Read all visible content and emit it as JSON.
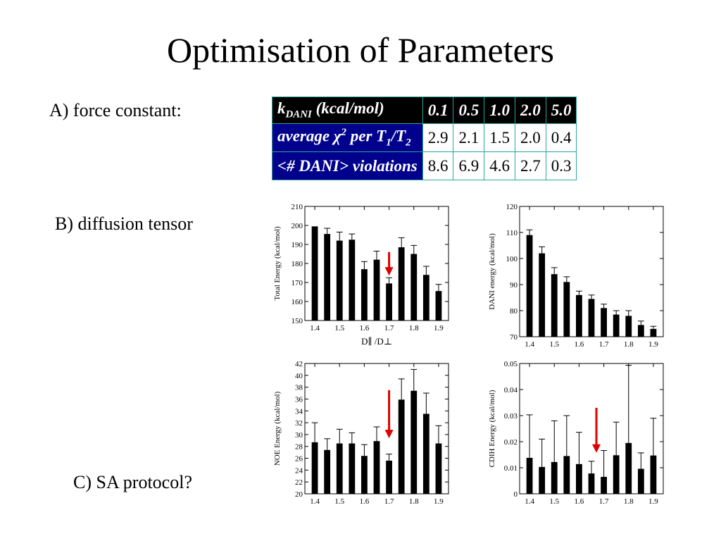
{
  "slide": {
    "title": "Optimisation of Parameters",
    "label_a": "A) force constant:",
    "label_b": "B) diffusion tensor",
    "label_c": "C) SA protocol?"
  },
  "table": {
    "header_label_main": "k",
    "header_label_sub": "DANI",
    "header_label_rest": " (kcal/mol)",
    "columns": [
      "0.1",
      "0.5",
      "1.0",
      "2.0",
      "5.0"
    ],
    "row1_label": {
      "a": "average ",
      "chi": "χ",
      "sup": "2",
      "b": " per T",
      "sub1": "1",
      "slash": "/T",
      "sub2": "2"
    },
    "row1_values": [
      "2.9",
      "2.1",
      "1.5",
      "2.0",
      "0.4"
    ],
    "row2_label": "<# DANI> violations",
    "row2_values": [
      "8.6",
      "6.9",
      "4.6",
      "2.7",
      "0.3"
    ],
    "colors": {
      "header_bg": "#000000",
      "rowhead_bg": "#00008c",
      "border": "#2aa79a"
    }
  },
  "chart_data": [
    {
      "id": "total",
      "type": "bar",
      "ylabel": "Total Energy (kcal/mol)",
      "xlabel": "D∥ /D⊥",
      "ylim": [
        150,
        210
      ],
      "yticks": [
        150,
        160,
        170,
        180,
        190,
        200,
        210
      ],
      "xlim": [
        1.36,
        1.94
      ],
      "xticks": [
        1.4,
        1.5,
        1.6,
        1.7,
        1.8,
        1.9
      ],
      "x": [
        1.4,
        1.45,
        1.5,
        1.55,
        1.6,
        1.65,
        1.7,
        1.75,
        1.8,
        1.85,
        1.9
      ],
      "values": [
        199.5,
        195.5,
        192.0,
        192.5,
        177.0,
        182.0,
        169.5,
        188.5,
        185.0,
        174.0,
        165.5
      ],
      "errors": [
        0,
        3,
        4.5,
        3,
        4,
        4.5,
        3,
        5,
        4.5,
        4.5,
        3.5
      ],
      "arrow_x": 1.7,
      "arrow_y": [
        186,
        174
      ],
      "bar_color": "#000000",
      "arrow_color": "#e00000"
    },
    {
      "id": "dani",
      "type": "bar",
      "ylabel": "DANI energy (kcal/mol)",
      "xlabel": "",
      "ylim": [
        70,
        120
      ],
      "yticks": [
        70,
        80,
        90,
        100,
        110,
        120
      ],
      "xlim": [
        1.36,
        1.94
      ],
      "xticks": [
        1.4,
        1.5,
        1.6,
        1.7,
        1.8,
        1.9
      ],
      "x": [
        1.4,
        1.45,
        1.5,
        1.55,
        1.6,
        1.65,
        1.7,
        1.75,
        1.8,
        1.85,
        1.9
      ],
      "values": [
        109,
        102,
        94,
        91,
        86,
        84.5,
        81,
        78.5,
        78,
        74.5,
        73
      ],
      "errors": [
        2,
        2.5,
        2.5,
        2,
        1.5,
        1.5,
        1.5,
        1.5,
        2,
        1.5,
        1
      ],
      "bar_color": "#000000"
    },
    {
      "id": "noe",
      "type": "bar",
      "ylabel": "NOE Energy (kcal/mol)",
      "xlabel": "",
      "ylim": [
        20,
        42
      ],
      "yticks": [
        20,
        22,
        24,
        26,
        28,
        30,
        32,
        34,
        36,
        38,
        40,
        42
      ],
      "xlim": [
        1.36,
        1.94
      ],
      "xticks": [
        1.4,
        1.5,
        1.6,
        1.7,
        1.8,
        1.9
      ],
      "x": [
        1.4,
        1.45,
        1.5,
        1.55,
        1.6,
        1.65,
        1.7,
        1.75,
        1.8,
        1.85,
        1.9
      ],
      "values": [
        28.7,
        27.4,
        28.5,
        28.5,
        26.4,
        28.9,
        25.6,
        35.9,
        37.4,
        33.5,
        28.5
      ],
      "errors": [
        3.3,
        1.9,
        2.4,
        1.8,
        1.9,
        2.4,
        1.1,
        3.5,
        3.6,
        3.5,
        3.0
      ],
      "arrow_x": 1.7,
      "arrow_y": [
        37.5,
        29.5
      ],
      "bar_color": "#000000",
      "arrow_color": "#e00000"
    },
    {
      "id": "cdih",
      "type": "bar",
      "ylabel": "CDIH Energy (kcal/mol)",
      "xlabel": "",
      "ylim": [
        0,
        0.05
      ],
      "yticks": [
        0,
        0.01,
        0.02,
        0.03,
        0.04,
        0.05
      ],
      "ytick_labels": [
        "0",
        "0.01",
        "0.02",
        "0.03",
        "0.04",
        "0.05"
      ],
      "xlim": [
        1.36,
        1.94
      ],
      "xticks": [
        1.4,
        1.5,
        1.6,
        1.7,
        1.8,
        1.9
      ],
      "x": [
        1.4,
        1.45,
        1.5,
        1.55,
        1.6,
        1.65,
        1.7,
        1.75,
        1.8,
        1.85,
        1.9
      ],
      "values": [
        0.0138,
        0.0103,
        0.0122,
        0.0145,
        0.0114,
        0.0078,
        0.0065,
        0.0148,
        0.0195,
        0.0096,
        0.0147
      ],
      "errors": [
        0.0165,
        0.0107,
        0.0158,
        0.0155,
        0.0122,
        0.0047,
        0.0101,
        0.0127,
        0.0298,
        0.0061,
        0.0143
      ],
      "arrow_x": 1.67,
      "arrow_y": [
        0.033,
        0.016
      ],
      "bar_color": "#000000",
      "arrow_color": "#e00000"
    }
  ]
}
